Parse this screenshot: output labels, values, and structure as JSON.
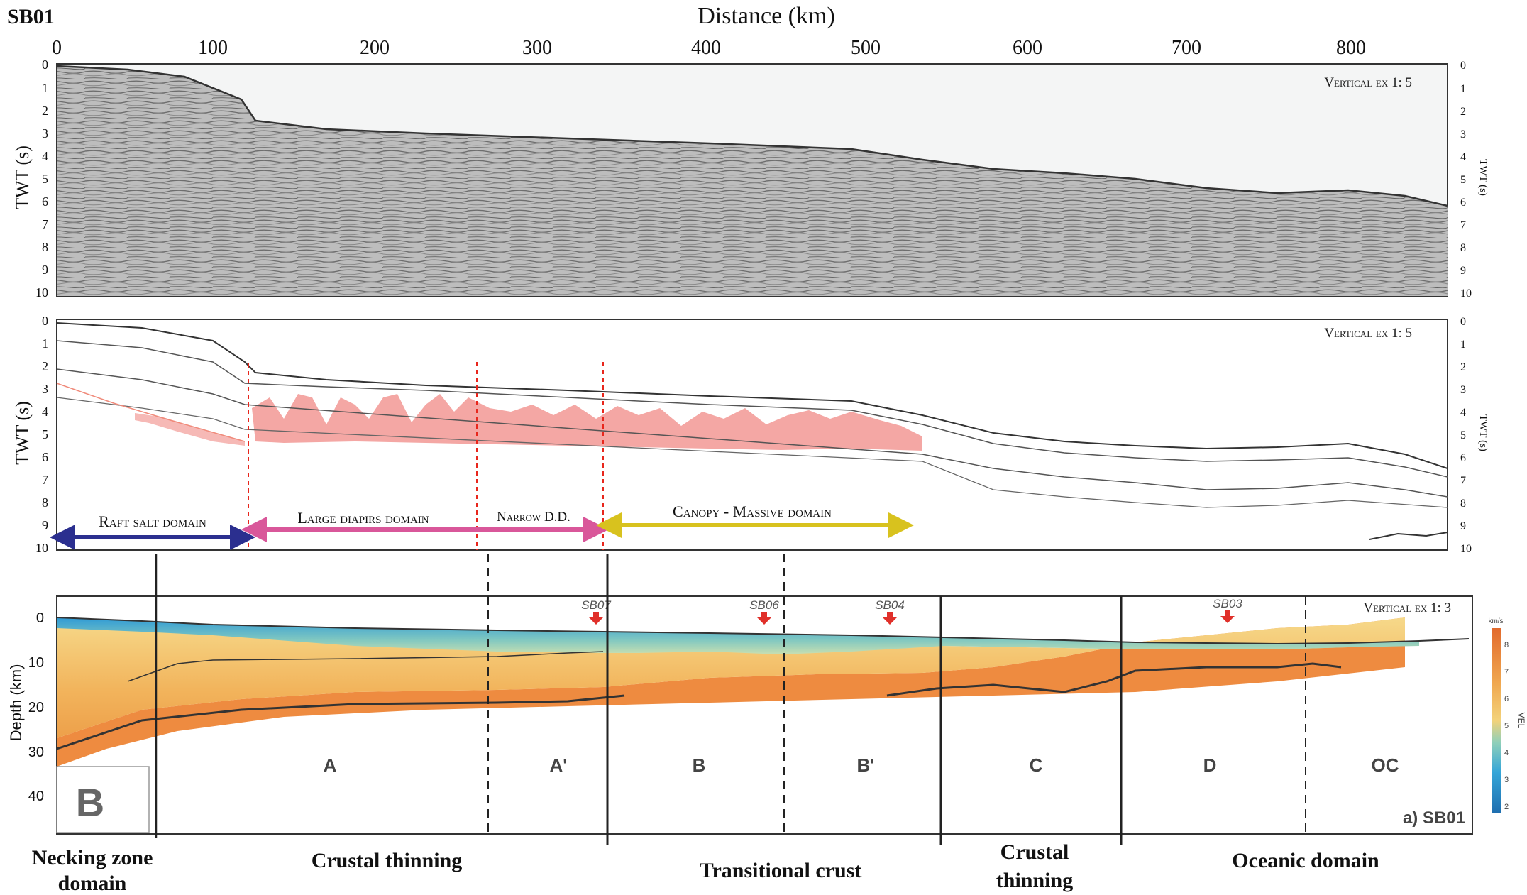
{
  "figure": {
    "profile_name": "SB01",
    "top_axis_title": "Distance (km)",
    "distance_ticks": [
      "0",
      "100",
      "200",
      "300",
      "400",
      "500",
      "600",
      "700",
      "800"
    ],
    "twt_label": "TWT (s)",
    "twt_ticks": [
      "0",
      "1",
      "2",
      "3",
      "4",
      "5",
      "6",
      "7",
      "8",
      "9",
      "10"
    ],
    "depth_label": "Depth (km)",
    "depth_ticks": [
      "0",
      "10",
      "20",
      "30",
      "40"
    ],
    "panel_top": {
      "vertical_exaggeration": "Vertical ex 1: 5"
    },
    "panel_middle": {
      "vertical_exaggeration": "Vertical ex 1: 5",
      "domains": [
        {
          "label": "Raft salt domain",
          "color": "#2b2f8f"
        },
        {
          "label": "Large diapirs domain",
          "color": "#d9579a"
        },
        {
          "label": "Narrow D.D.",
          "color": "#d9579a"
        },
        {
          "label": "Canopy - Massive domain",
          "color": "#d8c21e"
        }
      ]
    },
    "panel_bottom": {
      "vertical_exaggeration": "Vertical ex 1: 3",
      "panel_letter": "B",
      "caption": "a) SB01",
      "stations": [
        "SB07",
        "SB06",
        "SB04",
        "SB03"
      ],
      "zones": [
        "A",
        "A'",
        "B",
        "B'",
        "C",
        "D",
        "OC"
      ],
      "colorbar_unit": "km/s",
      "colorbar_label": "VEL",
      "colorbar_ticks": [
        "8",
        "7",
        "6",
        "5",
        "4",
        "3",
        "2"
      ]
    },
    "domains_bottom": [
      {
        "line1": "Necking zone",
        "line2": "domain"
      },
      {
        "line1": "Crustal thinning",
        "line2": ""
      },
      {
        "line1": "Transitional crust",
        "line2": ""
      },
      {
        "line1": "Crustal",
        "line2": "thinning"
      },
      {
        "line1": "Oceanic domain",
        "line2": ""
      }
    ],
    "colors": {
      "salt_fill": "#f4a7a4",
      "raft_arrow": "#2b2f8f",
      "diapir_arrow": "#d9579a",
      "canopy_arrow": "#d8c21e",
      "station_marker": "#e0302a"
    }
  }
}
